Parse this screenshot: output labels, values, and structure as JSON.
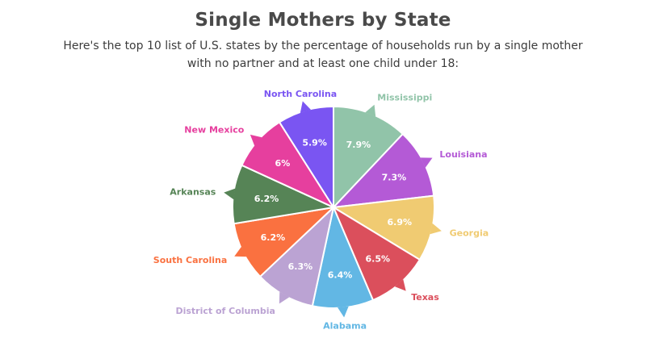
{
  "header": {
    "title": "Single Mothers by State",
    "subtitle": "Here's the top 10 list of U.S. states by the percentage of households run by a single mother with no partner and at least one child under 18:"
  },
  "chart_data": {
    "type": "pie",
    "title": "Single Mothers by State",
    "unit": "%",
    "slices": [
      {
        "label": "Mississippi",
        "value": 7.9,
        "display": "7.9%",
        "color": "#91c4a9"
      },
      {
        "label": "Louisiana",
        "value": 7.3,
        "display": "7.3%",
        "color": "#b45ad6"
      },
      {
        "label": "Georgia",
        "value": 6.9,
        "display": "6.9%",
        "color": "#f0cb72"
      },
      {
        "label": "Texas",
        "value": 6.5,
        "display": "6.5%",
        "color": "#db4f5c"
      },
      {
        "label": "Alabama",
        "value": 6.4,
        "display": "6.4%",
        "color": "#62b7e4"
      },
      {
        "label": "District of Columbia",
        "value": 6.3,
        "display": "6.3%",
        "color": "#bba3d3"
      },
      {
        "label": "South Carolina",
        "value": 6.2,
        "display": "6.2%",
        "color": "#fa7140"
      },
      {
        "label": "Arkansas",
        "value": 6.2,
        "display": "6.2%",
        "color": "#568456"
      },
      {
        "label": "New Mexico",
        "value": 6.0,
        "display": "6%",
        "color": "#e63f9e"
      },
      {
        "label": "North Carolina",
        "value": 5.9,
        "display": "5.9%",
        "color": "#7a55f2"
      }
    ]
  }
}
